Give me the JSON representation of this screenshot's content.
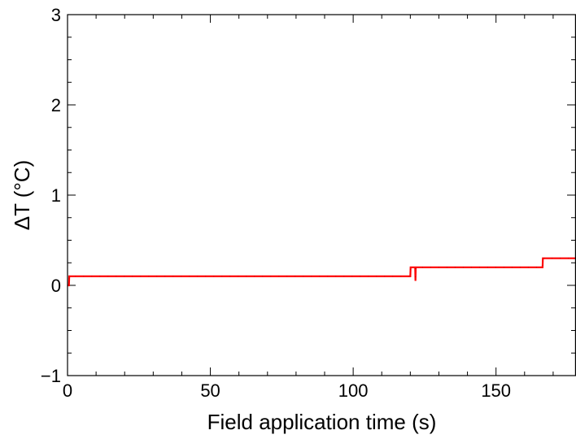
{
  "chart_data": {
    "type": "line",
    "xlabel": "Field application time (s)",
    "ylabel": "ΔT (°C)",
    "xlim": [
      0,
      178
    ],
    "ylim": [
      -1,
      3
    ],
    "x_ticks": [
      {
        "value": 0,
        "label": "0"
      },
      {
        "value": 50,
        "label": "50"
      },
      {
        "value": 100,
        "label": "100"
      },
      {
        "value": 150,
        "label": "150"
      }
    ],
    "y_ticks": [
      {
        "value": -1,
        "label": "−1"
      },
      {
        "value": 0,
        "label": "0"
      },
      {
        "value": 1,
        "label": "1"
      },
      {
        "value": 2,
        "label": "2"
      },
      {
        "value": 3,
        "label": "3"
      }
    ],
    "grid": false,
    "series": [
      {
        "color": "#ff0000",
        "x": [
          0,
          0.5,
          0.6,
          120.0,
          120.1,
          121.7,
          121.8,
          121.9,
          122.0,
          122.1,
          166.3,
          166.4,
          178
        ],
        "y": [
          0.0,
          0.0,
          0.1,
          0.1,
          0.2,
          0.2,
          0.05,
          0.2,
          0.2,
          0.2,
          0.2,
          0.3,
          0.3
        ]
      }
    ]
  }
}
